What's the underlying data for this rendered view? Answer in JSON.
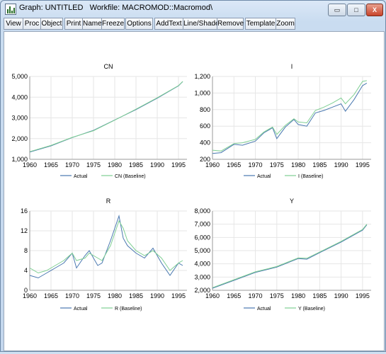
{
  "window": {
    "title": "Graph: UNTITLED   Workfile: MACROMOD::Macromod\\",
    "buttons": {
      "minimize": "▭",
      "maximize": "□",
      "close": "X"
    }
  },
  "toolbar": [
    {
      "id": "view",
      "label": "View"
    },
    {
      "id": "proc",
      "label": "Proc"
    },
    {
      "id": "object",
      "label": "Object"
    },
    {
      "id": "print",
      "label": "Print"
    },
    {
      "id": "name",
      "label": "Name"
    },
    {
      "id": "freeze",
      "label": "Freeze"
    },
    {
      "id": "options",
      "label": "Options"
    },
    {
      "id": "addtext",
      "label": "AddText"
    },
    {
      "id": "lineshade",
      "label": "Line/Shade"
    },
    {
      "id": "remove",
      "label": "Remove"
    },
    {
      "id": "template",
      "label": "Template"
    },
    {
      "id": "zoom",
      "label": "Zoom"
    }
  ],
  "colors": {
    "actual": "#4a78b0",
    "baseline": "#7fcf93",
    "grid": "#e6e6e6"
  },
  "chart_data": [
    {
      "type": "line",
      "title": "CN",
      "x": [
        1960,
        1965,
        1970,
        1975,
        1980,
        1985,
        1990,
        1995,
        1996
      ],
      "xticks": [
        "1960",
        "1965",
        "1970",
        "1975",
        "1980",
        "1985",
        "1990",
        "1995"
      ],
      "yticks": [
        "1,000",
        "2,000",
        "3,000",
        "4,000",
        "5,000"
      ],
      "ylim": [
        1000,
        5000
      ],
      "xlim": [
        1960,
        1997
      ],
      "series": [
        {
          "name": "Actual",
          "values": [
            1350,
            1650,
            2050,
            2400,
            2900,
            3400,
            3950,
            4550,
            4750
          ]
        },
        {
          "name": "CN (Baseline)",
          "values": [
            1370,
            1670,
            2060,
            2380,
            2890,
            3420,
            3970,
            4560,
            4760
          ]
        }
      ]
    },
    {
      "type": "line",
      "title": "I",
      "x": [
        1960,
        1962,
        1965,
        1967,
        1970,
        1972,
        1974,
        1975,
        1977,
        1979,
        1980,
        1982,
        1984,
        1986,
        1988,
        1990,
        1991,
        1993,
        1995,
        1996
      ],
      "xticks": [
        "1960",
        "1965",
        "1970",
        "1975",
        "1980",
        "1985",
        "1990",
        "1995"
      ],
      "yticks": [
        "200",
        "400",
        "600",
        "800",
        "1,000",
        "1,200"
      ],
      "ylim": [
        200,
        1200
      ],
      "xlim": [
        1960,
        1997
      ],
      "series": [
        {
          "name": "Actual",
          "values": [
            270,
            280,
            380,
            370,
            420,
            520,
            580,
            450,
            590,
            680,
            620,
            600,
            760,
            790,
            830,
            870,
            780,
            920,
            1090,
            1120
          ]
        },
        {
          "name": "I (Baseline)",
          "values": [
            310,
            300,
            390,
            400,
            440,
            530,
            590,
            500,
            610,
            690,
            650,
            640,
            790,
            830,
            880,
            940,
            870,
            980,
            1140,
            1150
          ]
        }
      ]
    },
    {
      "type": "line",
      "title": "R",
      "x": [
        1960,
        1962,
        1964,
        1966,
        1968,
        1970,
        1971,
        1973,
        1974,
        1976,
        1977,
        1979,
        1980,
        1981,
        1982,
        1983,
        1985,
        1987,
        1989,
        1991,
        1993,
        1995,
        1996
      ],
      "xticks": [
        "1960",
        "1965",
        "1970",
        "1975",
        "1980",
        "1985",
        "1990",
        "1995"
      ],
      "yticks": [
        "0",
        "4",
        "8",
        "12",
        "16"
      ],
      "ylim": [
        0,
        16
      ],
      "xlim": [
        1960,
        1997
      ],
      "series": [
        {
          "name": "Actual",
          "values": [
            3.0,
            2.5,
            3.5,
            4.5,
            5.5,
            7.5,
            4.5,
            7.0,
            8.0,
            5.0,
            5.5,
            10.0,
            12.5,
            15.0,
            10.5,
            9.0,
            7.5,
            6.5,
            8.5,
            5.5,
            3.0,
            5.5,
            5.0
          ]
        },
        {
          "name": "R (Baseline)",
          "values": [
            4.5,
            3.5,
            4.0,
            5.0,
            6.0,
            7.5,
            6.0,
            6.5,
            7.5,
            6.5,
            6.0,
            9.0,
            11.5,
            14.0,
            12.5,
            10.0,
            8.0,
            7.0,
            8.0,
            6.5,
            4.0,
            5.5,
            6.0
          ]
        }
      ]
    },
    {
      "type": "line",
      "title": "Y",
      "x": [
        1960,
        1965,
        1970,
        1975,
        1980,
        1982,
        1985,
        1990,
        1995,
        1996
      ],
      "xticks": [
        "1960",
        "1965",
        "1970",
        "1975",
        "1980",
        "1985",
        "1990",
        "1995"
      ],
      "yticks": [
        "2,000",
        "3,000",
        "4,000",
        "5,000",
        "6,000",
        "7,000",
        "8,000"
      ],
      "ylim": [
        2000,
        8000
      ],
      "xlim": [
        1960,
        1997
      ],
      "series": [
        {
          "name": "Actual",
          "values": [
            2150,
            2750,
            3350,
            3750,
            4400,
            4350,
            4850,
            5650,
            6550,
            6950
          ]
        },
        {
          "name": "Y (Baseline)",
          "values": [
            2200,
            2800,
            3400,
            3800,
            4450,
            4420,
            4900,
            5700,
            6600,
            7000
          ]
        }
      ]
    }
  ]
}
